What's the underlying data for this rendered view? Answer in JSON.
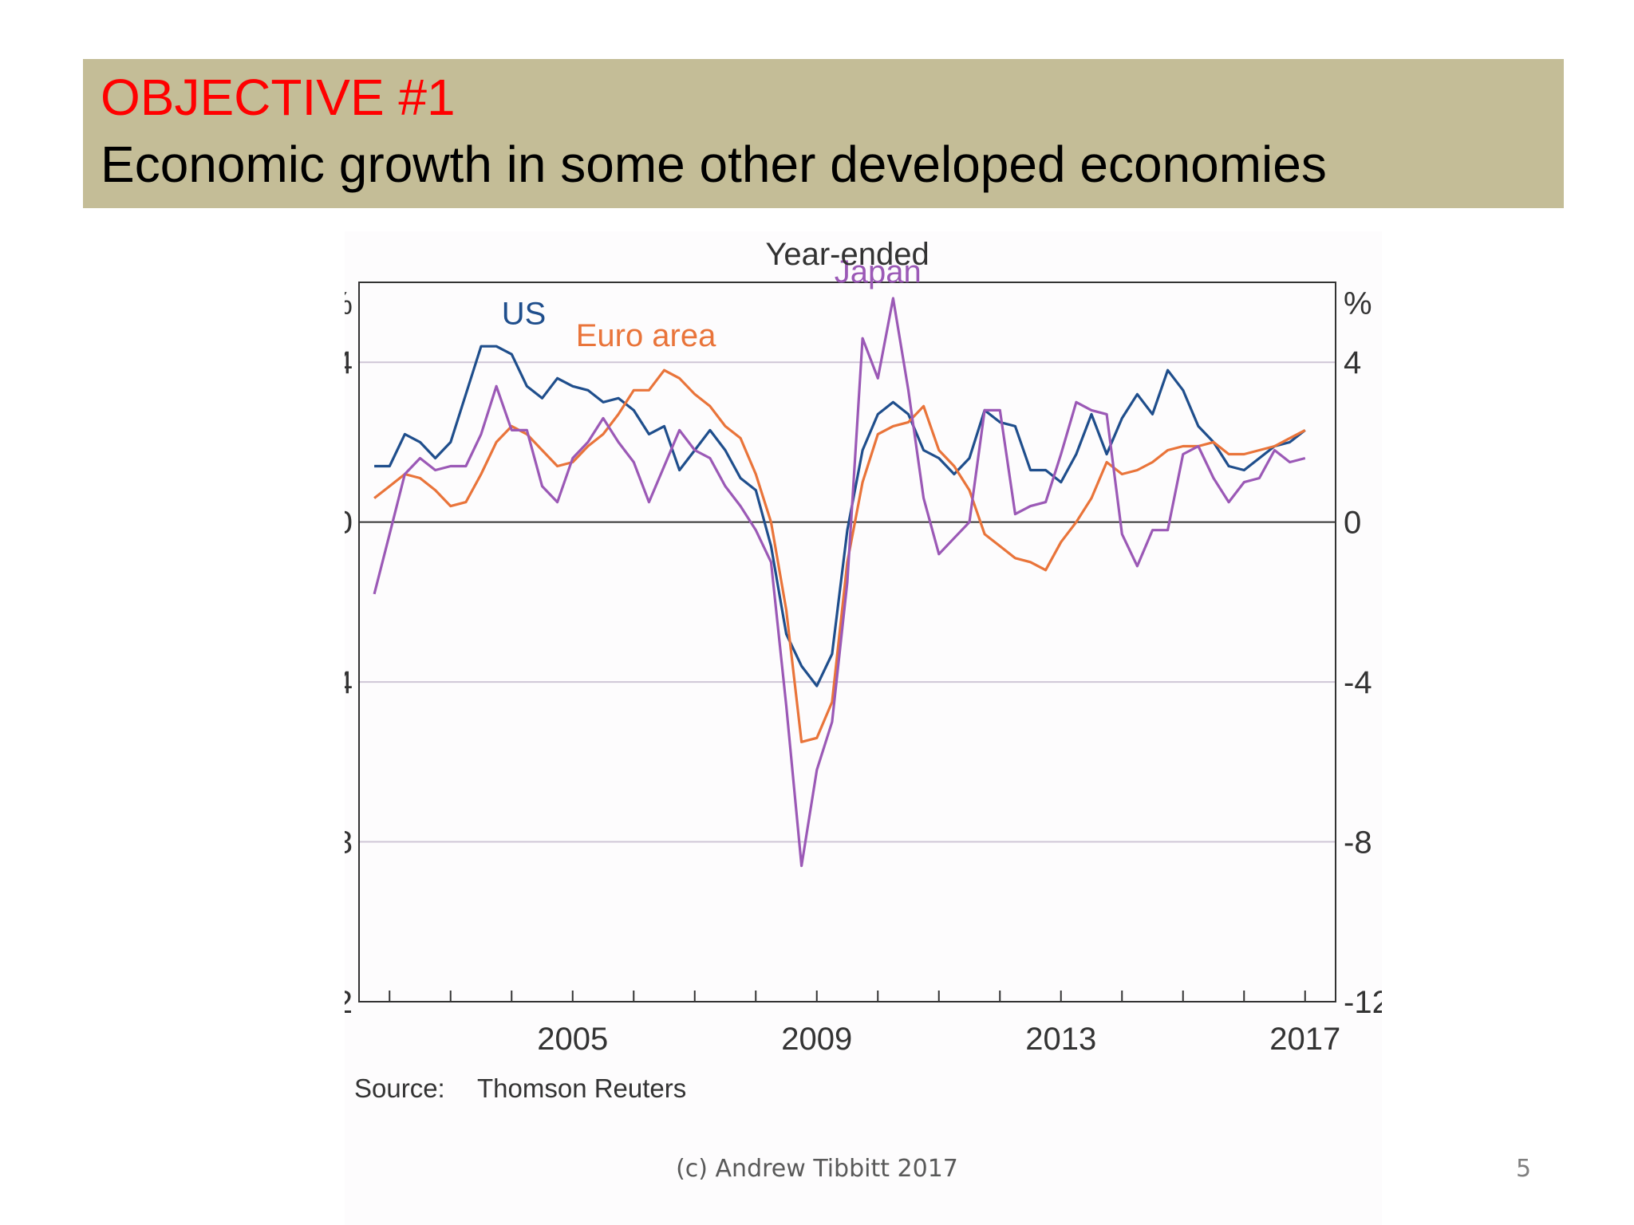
{
  "slide": {
    "title": "OBJECTIVE #1",
    "subtitle": "Economic growth in some other developed economies",
    "footer": "(c) Andrew Tibbitt 2017",
    "page_number": "5",
    "title_color": "#ff0000",
    "banner_color": "#c4bd97"
  },
  "chart_data": {
    "type": "line",
    "title": "Year-ended",
    "ylabel_left": "%",
    "ylabel_right": "%",
    "source_label": "Source:",
    "source_text": "Thomson Reuters",
    "ylim": [
      -12,
      6
    ],
    "xlim": [
      2001.5,
      2017.5
    ],
    "yticks": [
      4,
      0,
      -4,
      -8,
      -12
    ],
    "ytick_labels": [
      "4",
      "0",
      "-4",
      "-8",
      "-12"
    ],
    "xticks": [
      2005,
      2009,
      2013,
      2017
    ],
    "xtick_labels": [
      "2005",
      "2009",
      "2013",
      "2017"
    ],
    "gridlines": [
      4,
      0,
      -4,
      -8
    ],
    "grid": true,
    "x_start": 2001.75,
    "x_step": 0.25,
    "series": [
      {
        "name": "US",
        "color": "#1f4e8c",
        "values": [
          1.4,
          1.4,
          2.2,
          2.0,
          1.6,
          2.0,
          3.2,
          4.4,
          4.4,
          4.2,
          3.4,
          3.1,
          3.6,
          3.4,
          3.3,
          3.0,
          3.1,
          2.8,
          2.2,
          2.4,
          1.3,
          1.8,
          2.3,
          1.8,
          1.1,
          0.8,
          -0.6,
          -2.8,
          -3.6,
          -4.1,
          -3.3,
          -0.2,
          1.8,
          2.7,
          3.0,
          2.7,
          1.8,
          1.6,
          1.2,
          1.6,
          2.8,
          2.5,
          2.4,
          1.3,
          1.3,
          1.0,
          1.7,
          2.7,
          1.7,
          2.6,
          3.2,
          2.7,
          3.8,
          3.3,
          2.4,
          2.0,
          1.4,
          1.3,
          1.6,
          1.9,
          2.0,
          2.3
        ]
      },
      {
        "name": "Euro area",
        "color": "#e9743a",
        "values": [
          0.6,
          0.9,
          1.2,
          1.1,
          0.8,
          0.4,
          0.5,
          1.2,
          2.0,
          2.4,
          2.2,
          1.8,
          1.4,
          1.5,
          1.9,
          2.2,
          2.7,
          3.3,
          3.3,
          3.8,
          3.6,
          3.2,
          2.9,
          2.4,
          2.1,
          1.2,
          0.0,
          -2.2,
          -5.5,
          -5.4,
          -4.5,
          -1.0,
          1.0,
          2.2,
          2.4,
          2.5,
          2.9,
          1.8,
          1.4,
          0.8,
          -0.3,
          -0.6,
          -0.9,
          -1.0,
          -1.2,
          -0.5,
          0.0,
          0.6,
          1.5,
          1.2,
          1.3,
          1.5,
          1.8,
          1.9,
          1.9,
          2.0,
          1.7,
          1.7,
          1.8,
          1.9,
          2.1,
          2.3
        ]
      },
      {
        "name": "Japan",
        "color": "#9b59b6",
        "values": [
          -1.8,
          -0.3,
          1.2,
          1.6,
          1.3,
          1.4,
          1.4,
          2.2,
          3.4,
          2.3,
          2.3,
          0.9,
          0.5,
          1.6,
          2.0,
          2.6,
          2.0,
          1.5,
          0.5,
          1.4,
          2.3,
          1.8,
          1.6,
          0.9,
          0.4,
          -0.2,
          -1.0,
          -4.6,
          -8.6,
          -6.2,
          -5.0,
          -1.5,
          4.6,
          3.6,
          5.6,
          3.3,
          0.6,
          -0.8,
          -0.4,
          0.0,
          2.8,
          2.8,
          0.2,
          0.4,
          0.5,
          1.7,
          3.0,
          2.8,
          2.7,
          -0.3,
          -1.1,
          -0.2,
          -0.2,
          1.7,
          1.9,
          1.1,
          0.5,
          1.0,
          1.1,
          1.8,
          1.5,
          1.6
        ]
      }
    ],
    "annotations": [
      {
        "text": "US",
        "series": "US",
        "x": 2004.2,
        "y": 4.95
      },
      {
        "text": "Euro area",
        "series": "Euro area",
        "x": 2006.2,
        "y": 4.4
      },
      {
        "text": "Japan",
        "series": "Japan",
        "x": 2010.0,
        "y": 6.0
      }
    ]
  }
}
